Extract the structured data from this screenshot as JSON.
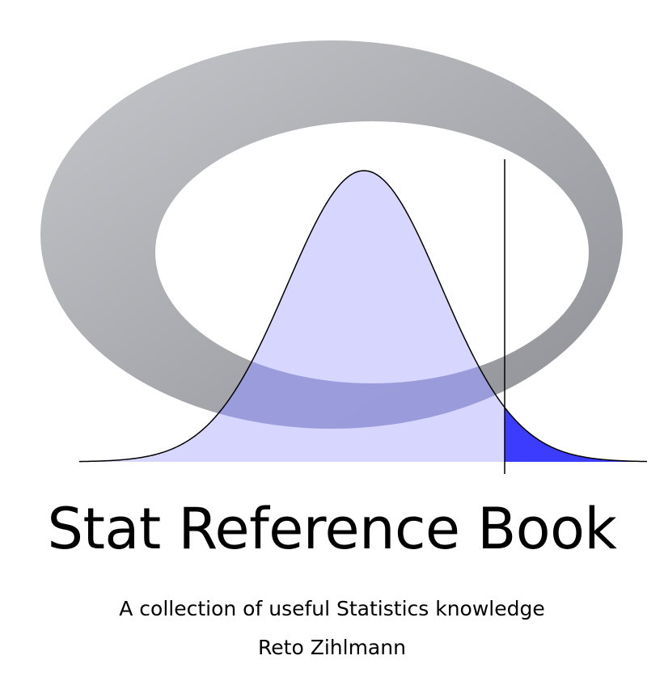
{
  "book": {
    "title": "Stat Reference Book",
    "subtitle": "A collection of useful Statistics knowledge",
    "author": "Reto Zihlmann"
  },
  "illustration": {
    "ring_icon": "grey-ellipse-ring",
    "curve_icon": "normal-distribution-curve",
    "critical_line_icon": "critical-value-line",
    "tail_icon": "shaded-upper-tail",
    "colors": {
      "ring_light": "#c6c7cb",
      "ring_dark": "#8f9095",
      "curve_fill": "#ccccff",
      "tail_fill": "#3c3cff",
      "overlap_fill": "#7b7cb1",
      "line": "#000000"
    }
  }
}
